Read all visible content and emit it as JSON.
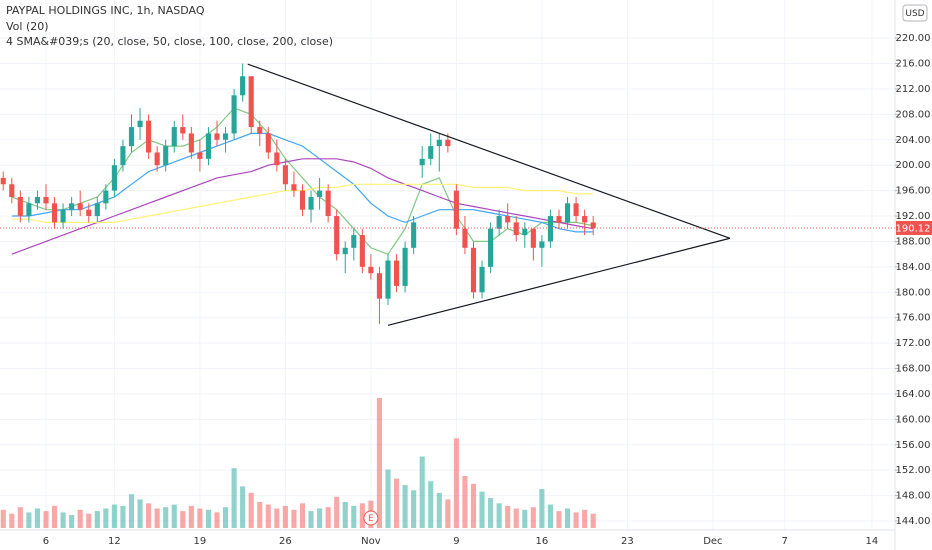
{
  "chart_data": {
    "type": "candlestick",
    "title": "PAYPAL HOLDINGS INC, 1h, NASDAQ",
    "volume_label": "Vol (20)",
    "sma_label": "4 SMA&#039;s (20, close, 50, close, 100, close, 200, close)",
    "currency": "USD",
    "xlim": [
      -2.69,
      49.65
    ],
    "ylim": [
      142.9,
      226
    ],
    "yticks": [
      {
        "value": 144,
        "label": "144.00"
      },
      {
        "value": 148,
        "label": "148.00"
      },
      {
        "value": 152,
        "label": "152.00"
      },
      {
        "value": 156,
        "label": "156.00"
      },
      {
        "value": 160,
        "label": "160.00"
      },
      {
        "value": 164,
        "label": "164.00"
      },
      {
        "value": 168,
        "label": "168.00"
      },
      {
        "value": 172,
        "label": "172.00"
      },
      {
        "value": 176,
        "label": "176.00"
      },
      {
        "value": 180,
        "label": "180.00"
      },
      {
        "value": 184,
        "label": "184.00"
      },
      {
        "value": 188,
        "label": "188.00"
      },
      {
        "value": 192,
        "label": "192.00"
      },
      {
        "value": 196,
        "label": "196.00"
      },
      {
        "value": 200,
        "label": "200.00"
      },
      {
        "value": 204,
        "label": "204.00"
      },
      {
        "value": 208,
        "label": "208.00"
      },
      {
        "value": 212,
        "label": "212.00"
      },
      {
        "value": 216,
        "label": "216.00"
      },
      {
        "value": 220,
        "label": "220.00"
      }
    ],
    "xticks": [
      {
        "value": 0,
        "label": "6"
      },
      {
        "value": 4,
        "label": "12"
      },
      {
        "value": 9,
        "label": "19"
      },
      {
        "value": 14,
        "label": "26"
      },
      {
        "value": 19,
        "label": "Nov"
      },
      {
        "value": 24,
        "label": "9"
      },
      {
        "value": 29,
        "label": "16"
      },
      {
        "value": 34,
        "label": "23"
      },
      {
        "value": 39,
        "label": "Dec"
      },
      {
        "value": 43.2,
        "label": "7"
      },
      {
        "value": 48.3,
        "label": "14"
      }
    ],
    "grid": true,
    "up_color": "#26a69a",
    "down_color": "#ef5350",
    "x": [
      -2.5,
      -2,
      -1.5,
      -1,
      -0.5,
      0,
      0.5,
      1,
      1.5,
      2,
      2.5,
      3,
      3.5,
      4,
      4.5,
      5,
      5.5,
      6,
      6.5,
      7,
      7.5,
      8,
      8.5,
      9,
      9.5,
      10,
      10.5,
      11,
      11.5,
      12,
      12.5,
      13,
      13.5,
      14,
      14.5,
      15,
      15.5,
      16,
      16.5,
      17,
      17.5,
      18,
      18.5,
      19,
      19.5,
      20,
      20.5,
      21,
      21.5,
      22,
      22.5,
      23,
      23.5,
      24,
      24.5,
      25,
      25.5,
      26,
      26.5,
      27,
      27.5,
      28,
      28.5,
      29,
      29.5,
      30,
      30.5,
      31,
      31.5,
      32
    ],
    "open": [
      198,
      197,
      195,
      192,
      194,
      195,
      194,
      191,
      193,
      194,
      193,
      192,
      194,
      196,
      200,
      203,
      206,
      207,
      202,
      200,
      203,
      206,
      205,
      202,
      201,
      205,
      204,
      205,
      211,
      214,
      206,
      205,
      202,
      200,
      197,
      196,
      193,
      195,
      196,
      192,
      186,
      187,
      189,
      184,
      183,
      179,
      185,
      181,
      187,
      200,
      201,
      203,
      204,
      196,
      190,
      187,
      180,
      184,
      190,
      192,
      191,
      189,
      190,
      187,
      188,
      192,
      191,
      194,
      192,
      191
    ],
    "high": [
      199,
      198,
      196,
      195,
      196,
      197,
      195,
      194,
      195,
      196,
      194,
      195,
      197,
      201,
      204,
      208,
      209,
      208,
      203,
      204,
      207,
      208,
      206,
      204,
      206,
      207,
      206,
      212,
      216,
      214,
      207,
      206,
      204,
      201,
      199,
      197,
      196,
      198,
      197,
      193,
      188,
      190,
      190,
      186,
      184,
      186,
      186,
      188,
      192,
      203,
      205,
      205,
      205,
      197,
      192,
      188,
      185,
      191,
      193,
      194,
      192,
      191,
      190,
      189,
      193,
      193,
      195,
      195,
      193,
      192
    ],
    "low": [
      196,
      194,
      191,
      191,
      193,
      193,
      190,
      190,
      192,
      192,
      191,
      191,
      193,
      195,
      199,
      202,
      204,
      201,
      199,
      199,
      202,
      204,
      201,
      199,
      200,
      203,
      202,
      204,
      210,
      205,
      203,
      201,
      199,
      196,
      195,
      192,
      191,
      193,
      191,
      185,
      183,
      185,
      183,
      182,
      175,
      178,
      180,
      180,
      186,
      198,
      200,
      199,
      202,
      189,
      186,
      179,
      179,
      183,
      189,
      190,
      188,
      187,
      185,
      184,
      187,
      190,
      190,
      191,
      189,
      189
    ],
    "close": [
      197,
      195,
      192,
      194,
      195,
      194,
      191,
      193,
      194,
      193,
      192,
      194,
      196,
      200,
      203,
      206,
      207,
      202,
      200,
      203,
      206,
      205,
      202,
      201,
      205,
      204,
      205,
      211,
      214,
      206,
      205,
      202,
      200,
      197,
      196,
      193,
      195,
      196,
      192,
      186,
      187,
      189,
      184,
      183,
      179,
      185,
      181,
      187,
      191,
      201,
      203,
      204,
      203,
      190,
      187,
      180,
      184,
      190,
      192,
      191,
      189,
      190,
      187,
      188,
      192,
      191,
      194,
      192,
      191,
      190.12
    ],
    "volume": [
      1400,
      1100,
      1600,
      1200,
      1500,
      1300,
      1700,
      1200,
      1000,
      1400,
      1100,
      1300,
      1500,
      1800,
      1700,
      2600,
      2200,
      1900,
      1500,
      1600,
      1800,
      1300,
      1700,
      1500,
      1400,
      1200,
      1600,
      4600,
      3200,
      2700,
      2000,
      1800,
      1500,
      1700,
      1400,
      1900,
      1300,
      1500,
      1600,
      2400,
      2000,
      1700,
      1900,
      2100,
      10000,
      4500,
      3800,
      3300,
      2900,
      5500,
      3600,
      2700,
      2200,
      6900,
      4000,
      3400,
      2800,
      2300,
      1900,
      1700,
      1500,
      1400,
      1600,
      3000,
      1800,
      1300,
      1500,
      1200,
      1400,
      1100
    ],
    "sma_x": [
      -2,
      -1,
      0,
      1,
      2,
      3,
      4,
      5,
      6,
      7,
      8,
      9,
      10,
      11,
      12,
      13,
      14,
      15,
      16,
      17,
      18,
      19,
      20,
      21,
      22,
      23,
      24,
      25,
      26,
      27,
      28,
      29,
      30,
      31,
      32
    ],
    "sma": [
      {
        "color": "#81c784",
        "values": [
          195,
          194,
          193,
          193,
          194,
          195,
          198,
          202,
          204,
          203,
          203,
          204,
          206,
          209,
          208,
          205,
          201,
          198,
          195,
          193,
          190,
          187,
          186,
          190,
          197,
          198,
          192,
          188,
          188,
          190,
          189,
          191,
          191,
          191,
          190.5
        ]
      },
      {
        "color": "#42a5f5",
        "values": [
          192,
          192,
          192.5,
          193,
          193,
          194,
          195,
          197,
          199,
          200,
          201,
          202,
          203,
          204,
          205,
          205,
          204,
          203,
          201,
          199,
          197,
          194,
          192,
          191,
          192,
          193,
          193,
          193,
          192.5,
          192,
          191.5,
          191,
          190,
          189.5,
          189.5
        ]
      },
      {
        "color": "#ab47bc",
        "values": [
          186,
          187,
          188,
          189,
          190,
          191,
          192,
          193,
          194,
          195,
          196,
          197,
          198,
          198.5,
          199,
          200,
          200.5,
          201,
          201,
          201,
          200.5,
          199.5,
          198,
          197,
          196,
          195,
          194,
          193.5,
          193,
          192.5,
          192,
          191.5,
          191,
          190.5,
          190
        ]
      },
      {
        "color": "#fff176",
        "values": [
          191.5,
          191.5,
          191,
          191,
          191,
          191,
          191,
          191.5,
          192,
          192.5,
          193,
          193.5,
          194,
          194.5,
          195,
          195.5,
          196,
          196,
          196.5,
          196.5,
          197,
          197,
          197,
          197,
          197,
          197,
          197,
          196.5,
          196.5,
          196.5,
          196,
          196,
          196,
          195.5,
          195.5
        ]
      }
    ],
    "trendlines": [
      {
        "x": [
          11.8,
          40
        ],
        "y": [
          215.9,
          188.5
        ]
      },
      {
        "x": [
          20,
          40
        ],
        "y": [
          174.8,
          188.5
        ]
      }
    ],
    "last_price": 190.12,
    "earnings_marker": {
      "x": 19,
      "label": "E"
    }
  }
}
